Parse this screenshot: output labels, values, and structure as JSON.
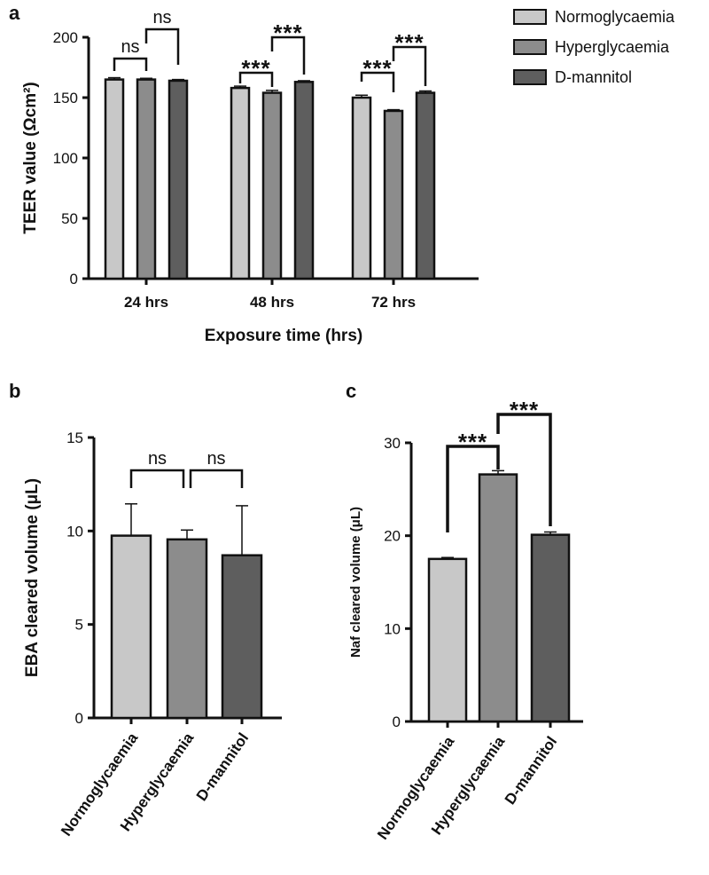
{
  "chart_data": [
    {
      "panel": "a",
      "type": "bar",
      "title": "",
      "xlabel": "Exposure time (hrs)",
      "ylabel": "TEER value (Ωcm²)",
      "categories": [
        "24 hrs",
        "48 hrs",
        "72 hrs"
      ],
      "series": [
        {
          "name": "Normoglycaemia",
          "values": [
            165,
            158,
            150
          ],
          "errors": [
            1.5,
            1.5,
            2
          ],
          "color": "#c8c8c8"
        },
        {
          "name": "Hyperglycaemia",
          "values": [
            165,
            154,
            139
          ],
          "errors": [
            1,
            2,
            1
          ],
          "color": "#8c8c8c"
        },
        {
          "name": "D-mannitol",
          "values": [
            164,
            163,
            154
          ],
          "errors": [
            1,
            1,
            1.5
          ],
          "color": "#5e5e5e"
        }
      ],
      "ylim": [
        0,
        200
      ],
      "yticks": [
        0,
        50,
        100,
        150,
        200
      ],
      "legend": "top-right",
      "significance": [
        {
          "group": 0,
          "from": 0,
          "to": 1,
          "label": "ns"
        },
        {
          "group": 0,
          "from": 1,
          "to": 2,
          "label": "ns"
        },
        {
          "group": 1,
          "from": 0,
          "to": 1,
          "label": "***"
        },
        {
          "group": 1,
          "from": 1,
          "to": 2,
          "label": "***"
        },
        {
          "group": 2,
          "from": 0,
          "to": 1,
          "label": "***"
        },
        {
          "group": 2,
          "from": 1,
          "to": 2,
          "label": "***"
        }
      ]
    },
    {
      "panel": "b",
      "type": "bar",
      "title": "",
      "xlabel": "",
      "ylabel": "EBA cleared volume (μL)",
      "categories": [
        "Normoglycaemia",
        "Hyperglycaemia",
        "D-mannitol"
      ],
      "values": [
        9.75,
        9.55,
        8.7
      ],
      "errors": [
        1.7,
        0.5,
        2.65
      ],
      "colors": [
        "#c8c8c8",
        "#8c8c8c",
        "#5e5e5e"
      ],
      "ylim": [
        0,
        15
      ],
      "yticks": [
        0,
        5,
        10,
        15
      ],
      "significance": [
        {
          "from": 0,
          "to": 1,
          "label": "ns"
        },
        {
          "from": 1,
          "to": 2,
          "label": "ns"
        }
      ]
    },
    {
      "panel": "c",
      "type": "bar",
      "title": "",
      "xlabel": "",
      "ylabel": "Naf cleared volume (μL)",
      "categories": [
        "Normoglycaemia",
        "Hyperglycaemia",
        "D-mannitol"
      ],
      "values": [
        17.5,
        26.6,
        20.1
      ],
      "errors": [
        0.15,
        0.4,
        0.3
      ],
      "colors": [
        "#c8c8c8",
        "#8c8c8c",
        "#5e5e5e"
      ],
      "ylim": [
        0,
        30
      ],
      "yticks": [
        0,
        10,
        20,
        30
      ],
      "significance": [
        {
          "from": 0,
          "to": 1,
          "label": "***"
        },
        {
          "from": 1,
          "to": 2,
          "label": "***"
        }
      ]
    }
  ]
}
